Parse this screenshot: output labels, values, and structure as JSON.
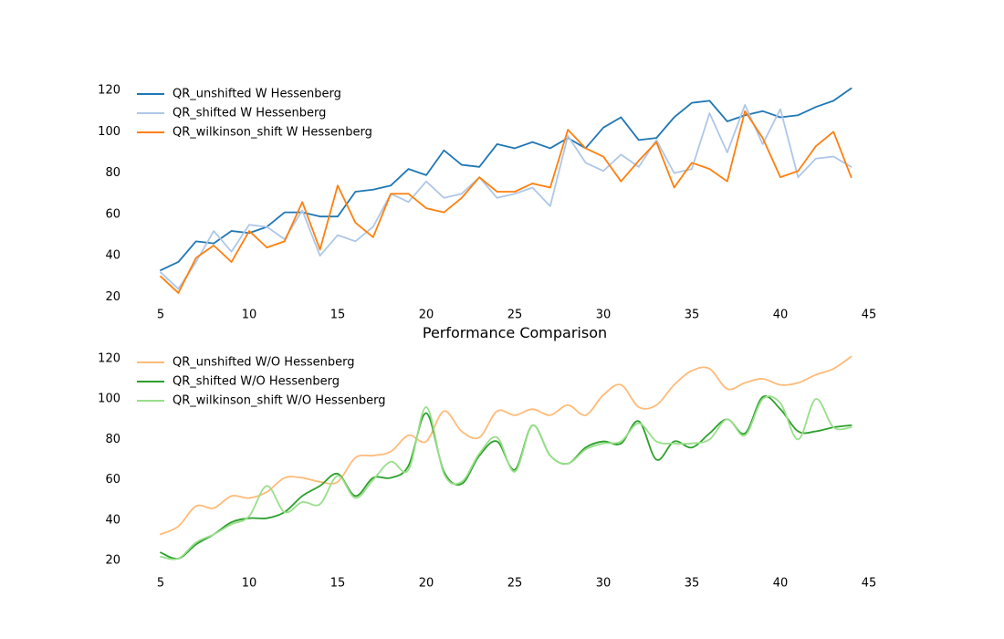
{
  "figure_title": "Performance Comparison",
  "chart_data": [
    {
      "type": "line",
      "title": "",
      "xlabel": "",
      "ylabel": "",
      "xlim": [
        5,
        45
      ],
      "ylim": [
        18,
        124
      ],
      "grid": false,
      "legend_position": "top-left",
      "xticks": [
        5,
        10,
        15,
        20,
        25,
        30,
        35,
        40,
        45
      ],
      "yticks": [
        20,
        40,
        60,
        80,
        100,
        120
      ],
      "x": [
        5,
        6,
        7,
        8,
        9,
        10,
        11,
        12,
        13,
        14,
        15,
        16,
        17,
        18,
        19,
        20,
        21,
        22,
        23,
        24,
        25,
        26,
        27,
        28,
        29,
        30,
        31,
        32,
        33,
        34,
        35,
        36,
        37,
        38,
        39,
        40,
        41,
        42,
        43,
        44
      ],
      "series": [
        {
          "name": "QR_unshifted W Hessenberg",
          "color": "#1f77b4",
          "smooth": false,
          "values": [
            33,
            37,
            47,
            46,
            52,
            51,
            54,
            61,
            61,
            59,
            59,
            71,
            72,
            74,
            82,
            79,
            91,
            84,
            83,
            94,
            92,
            95,
            92,
            97,
            92,
            102,
            107,
            96,
            97,
            107,
            114,
            115,
            105,
            108,
            110,
            107,
            108,
            112,
            115,
            121
          ]
        },
        {
          "name": "QR_shifted W Hessenberg",
          "color": "#aec7e8",
          "smooth": false,
          "values": [
            32,
            24,
            37,
            52,
            42,
            55,
            54,
            48,
            62,
            40,
            50,
            47,
            54,
            70,
            66,
            76,
            68,
            70,
            78,
            68,
            70,
            73,
            64,
            98,
            85,
            81,
            89,
            83,
            96,
            80,
            82,
            109,
            90,
            113,
            94,
            111,
            78,
            87,
            88,
            83
          ]
        },
        {
          "name": "QR_wilkinson_shift W Hessenberg",
          "color": "#ff7f0e",
          "smooth": false,
          "values": [
            30,
            22,
            39,
            45,
            37,
            52,
            44,
            47,
            66,
            43,
            74,
            56,
            49,
            70,
            70,
            63,
            61,
            68,
            78,
            71,
            71,
            75,
            73,
            101,
            92,
            88,
            76,
            86,
            95,
            73,
            85,
            82,
            76,
            110,
            97,
            78,
            81,
            93,
            100,
            78
          ]
        }
      ]
    },
    {
      "type": "line",
      "title": "",
      "xlabel": "",
      "ylabel": "",
      "xlim": [
        5,
        45
      ],
      "ylim": [
        16,
        124
      ],
      "grid": false,
      "legend_position": "top-left",
      "xticks": [
        5,
        10,
        15,
        20,
        25,
        30,
        35,
        40,
        45
      ],
      "yticks": [
        20,
        40,
        60,
        80,
        100,
        120
      ],
      "x": [
        5,
        6,
        7,
        8,
        9,
        10,
        11,
        12,
        13,
        14,
        15,
        16,
        17,
        18,
        19,
        20,
        21,
        22,
        23,
        24,
        25,
        26,
        27,
        28,
        29,
        30,
        31,
        32,
        33,
        34,
        35,
        36,
        37,
        38,
        39,
        40,
        41,
        42,
        43,
        44
      ],
      "series": [
        {
          "name": "QR_unshifted W/O Hessenberg",
          "color": "#ffbb78",
          "smooth": true,
          "values": [
            33,
            37,
            47,
            46,
            52,
            51,
            54,
            61,
            61,
            59,
            59,
            71,
            72,
            74,
            82,
            79,
            94,
            84,
            81,
            94,
            92,
            95,
            92,
            97,
            92,
            102,
            107,
            96,
            97,
            107,
            114,
            115,
            105,
            108,
            110,
            107,
            108,
            112,
            115,
            121
          ]
        },
        {
          "name": "QR_shifted W/O Hessenberg",
          "color": "#2ca02c",
          "smooth": true,
          "values": [
            24,
            21,
            28,
            33,
            39,
            41,
            41,
            44,
            52,
            57,
            63,
            52,
            61,
            61,
            67,
            93,
            64,
            58,
            72,
            79,
            65,
            87,
            72,
            68,
            76,
            79,
            78,
            89,
            70,
            79,
            76,
            83,
            90,
            83,
            101,
            95,
            84,
            84,
            86,
            87
          ]
        },
        {
          "name": "QR_wilkinson_shift W/O Hessenberg",
          "color": "#98df8a",
          "smooth": true,
          "values": [
            22,
            21,
            29,
            33,
            38,
            42,
            57,
            44,
            49,
            48,
            62,
            51,
            60,
            69,
            65,
            96,
            63,
            59,
            73,
            81,
            64,
            87,
            72,
            68,
            75,
            78,
            79,
            88,
            79,
            78,
            78,
            80,
            90,
            82,
            100,
            98,
            80,
            100,
            86,
            86
          ]
        }
      ]
    }
  ]
}
